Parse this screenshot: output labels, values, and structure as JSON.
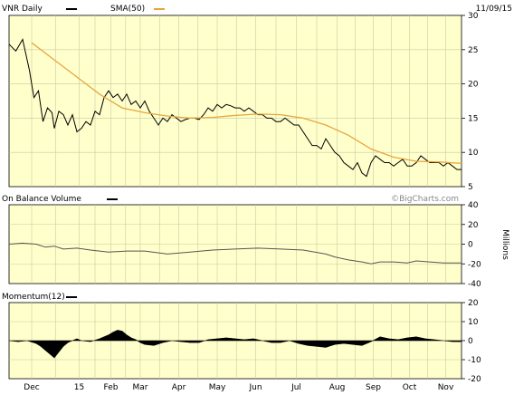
{
  "header": {
    "symbol_label": "VNR Daily",
    "sma_label": "SMA(50)",
    "date": "11/09/15"
  },
  "colors": {
    "panel_bg": "#ffffcc",
    "grid": "#c9cba0",
    "price": "#000000",
    "sma": "#e6a640",
    "obv": "#555555",
    "momentum": "#000000",
    "watermark": "#888888"
  },
  "watermark": "©BigCharts.com",
  "chart_data": [
    {
      "type": "line",
      "name": "price",
      "title": "VNR Daily",
      "y_ticks": [
        5,
        10,
        15,
        20,
        25,
        30
      ],
      "ylim": [
        5,
        30
      ],
      "x_labels": [
        "Dec",
        "15",
        "Feb",
        "Mar",
        "Apr",
        "May",
        "Jun",
        "Jul",
        "Aug",
        "Sep",
        "Oct",
        "Nov"
      ],
      "x_positions": [
        0.05,
        0.155,
        0.225,
        0.29,
        0.375,
        0.46,
        0.545,
        0.635,
        0.725,
        0.805,
        0.885,
        0.965
      ],
      "series": [
        {
          "name": "VNR Daily",
          "x": [
            0,
            0.015,
            0.03,
            0.045,
            0.055,
            0.065,
            0.075,
            0.085,
            0.095,
            0.1,
            0.11,
            0.12,
            0.13,
            0.14,
            0.15,
            0.16,
            0.17,
            0.18,
            0.19,
            0.2,
            0.21,
            0.22,
            0.23,
            0.24,
            0.25,
            0.26,
            0.27,
            0.28,
            0.29,
            0.3,
            0.31,
            0.32,
            0.33,
            0.34,
            0.35,
            0.36,
            0.37,
            0.38,
            0.39,
            0.4,
            0.41,
            0.42,
            0.43,
            0.44,
            0.45,
            0.46,
            0.47,
            0.48,
            0.49,
            0.5,
            0.51,
            0.52,
            0.53,
            0.54,
            0.55,
            0.56,
            0.57,
            0.58,
            0.59,
            0.6,
            0.61,
            0.62,
            0.63,
            0.64,
            0.65,
            0.66,
            0.67,
            0.68,
            0.69,
            0.7,
            0.71,
            0.72,
            0.73,
            0.74,
            0.75,
            0.76,
            0.77,
            0.78,
            0.79,
            0.8,
            0.81,
            0.82,
            0.83,
            0.84,
            0.85,
            0.86,
            0.87,
            0.88,
            0.89,
            0.9,
            0.91,
            0.92,
            0.93,
            0.94,
            0.95,
            0.96,
            0.97,
            0.98,
            0.99,
            1.0
          ],
          "values": [
            25.8,
            24.8,
            26.5,
            22,
            18,
            19,
            14.5,
            16.5,
            15.8,
            13.5,
            16,
            15.5,
            14,
            15.5,
            13,
            13.5,
            14.5,
            14,
            16,
            15.5,
            18,
            19,
            18,
            18.5,
            17.5,
            18.5,
            17,
            17.5,
            16.5,
            17.5,
            16,
            15,
            14,
            15,
            14.5,
            15.5,
            15,
            14.5,
            14.8,
            15,
            15,
            14.8,
            15.5,
            16.5,
            16,
            17,
            16.5,
            17,
            16.8,
            16.5,
            16.5,
            16,
            16.5,
            16,
            15.5,
            15.5,
            15,
            15,
            14.5,
            14.5,
            15,
            14.5,
            14,
            14,
            13,
            12,
            11,
            11,
            10.5,
            12,
            11,
            10,
            9.5,
            8.5,
            8,
            7.5,
            8.5,
            7,
            6.5,
            8.5,
            9.5,
            9,
            8.5,
            8.5,
            8,
            8.5,
            9,
            8,
            8,
            8.5,
            9.5,
            9,
            8.5,
            8.5,
            8.5,
            8,
            8.5,
            8,
            7.5,
            7.5
          ]
        },
        {
          "name": "SMA(50)",
          "x": [
            0.05,
            0.1,
            0.15,
            0.2,
            0.25,
            0.3,
            0.35,
            0.4,
            0.45,
            0.5,
            0.55,
            0.6,
            0.65,
            0.7,
            0.75,
            0.8,
            0.85,
            0.9,
            0.95,
            1.0
          ],
          "values": [
            26,
            23.5,
            21,
            18.5,
            16.5,
            15.8,
            15.3,
            15,
            15.1,
            15.4,
            15.6,
            15.5,
            15,
            14,
            12.5,
            10.5,
            9.3,
            8.7,
            8.6,
            8.4
          ]
        }
      ]
    },
    {
      "type": "line",
      "name": "obv",
      "title": "On Balance Volume",
      "ylabel": "Millions",
      "y_ticks": [
        40,
        20,
        0,
        -20,
        -40
      ],
      "ylim": [
        -40,
        40
      ],
      "series": [
        {
          "name": "On Balance Volume",
          "x": [
            0,
            0.03,
            0.06,
            0.08,
            0.1,
            0.12,
            0.15,
            0.18,
            0.22,
            0.26,
            0.3,
            0.35,
            0.4,
            0.45,
            0.5,
            0.55,
            0.6,
            0.65,
            0.7,
            0.72,
            0.75,
            0.78,
            0.8,
            0.82,
            0.85,
            0.88,
            0.9,
            0.93,
            0.96,
            1.0
          ],
          "values": [
            0,
            1,
            0,
            -3,
            -2,
            -5,
            -4,
            -6,
            -8,
            -7,
            -7,
            -10,
            -8,
            -6,
            -5,
            -4,
            -5,
            -6,
            -10,
            -13,
            -16,
            -18,
            -20,
            -18,
            -18,
            -19,
            -17,
            -18,
            -19,
            -19
          ]
        }
      ]
    },
    {
      "type": "area",
      "name": "momentum",
      "title": "Momentum(12)",
      "y_ticks": [
        20,
        10,
        0,
        -10,
        -20
      ],
      "ylim": [
        -20,
        20
      ],
      "series": [
        {
          "name": "Momentum(12)",
          "x": [
            0,
            0.02,
            0.04,
            0.06,
            0.07,
            0.08,
            0.09,
            0.1,
            0.11,
            0.12,
            0.13,
            0.14,
            0.15,
            0.16,
            0.18,
            0.2,
            0.22,
            0.23,
            0.24,
            0.25,
            0.26,
            0.27,
            0.28,
            0.29,
            0.3,
            0.32,
            0.34,
            0.36,
            0.38,
            0.4,
            0.42,
            0.44,
            0.46,
            0.48,
            0.5,
            0.52,
            0.54,
            0.56,
            0.58,
            0.6,
            0.62,
            0.64,
            0.66,
            0.68,
            0.7,
            0.72,
            0.74,
            0.76,
            0.78,
            0.8,
            0.82,
            0.84,
            0.86,
            0.88,
            0.9,
            0.92,
            0.94,
            0.96,
            0.98,
            1.0
          ],
          "values": [
            0,
            -0.5,
            0,
            -1.5,
            -3,
            -5,
            -7,
            -9,
            -6,
            -3,
            -1,
            0,
            1,
            0,
            -0.5,
            1,
            3,
            4.5,
            5.5,
            5,
            3,
            1.5,
            0.5,
            -1,
            -2,
            -2.5,
            -1,
            0,
            -0.5,
            -1,
            -1,
            0.5,
            1,
            1.5,
            1,
            0.5,
            1,
            0,
            -1,
            -1,
            0,
            -1.5,
            -2.5,
            -3,
            -3.5,
            -2,
            -1.5,
            -2,
            -2.5,
            -0.5,
            2,
            1,
            0.5,
            1.5,
            2,
            1,
            0.5,
            0,
            -0.5,
            -0.5
          ]
        }
      ]
    }
  ]
}
